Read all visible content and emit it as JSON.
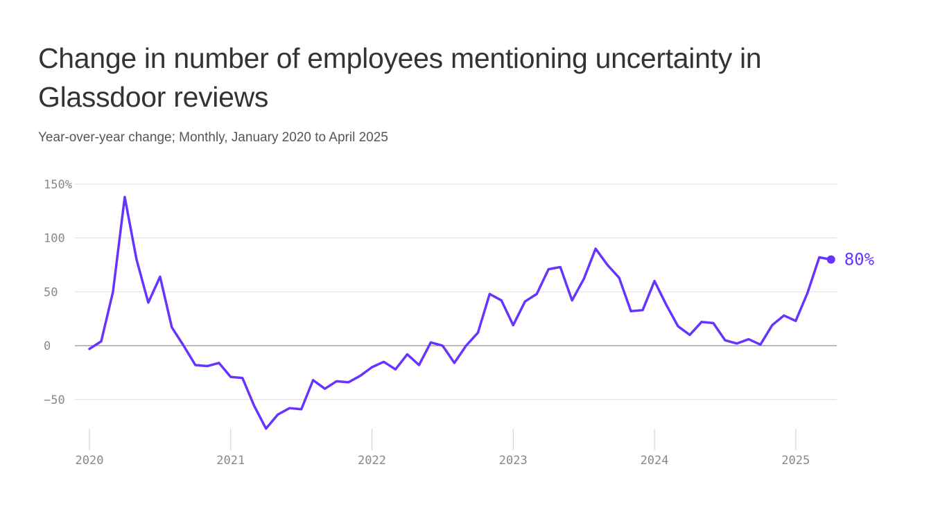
{
  "chart_data": {
    "type": "line",
    "title": "Change in number of employees mentioning uncertainty in Glassdoor reviews",
    "subtitle": "Year-over-year change; Monthly, January 2020 to April 2025",
    "xlabel": "",
    "ylabel": "",
    "ylim": [
      -80,
      150
    ],
    "yticks": [
      150,
      100,
      50,
      0,
      -50
    ],
    "ytick_labels": [
      "150%",
      "100",
      "50",
      "0",
      "−50"
    ],
    "xticks": [
      "2020",
      "2021",
      "2022",
      "2023",
      "2024",
      "2025"
    ],
    "grid": true,
    "line_color": "#6633ff",
    "end_label": "80%",
    "x": [
      "2020-01",
      "2020-02",
      "2020-03",
      "2020-04",
      "2020-05",
      "2020-06",
      "2020-07",
      "2020-08",
      "2020-09",
      "2020-10",
      "2020-11",
      "2020-12",
      "2021-01",
      "2021-02",
      "2021-03",
      "2021-04",
      "2021-05",
      "2021-06",
      "2021-07",
      "2021-08",
      "2021-09",
      "2021-10",
      "2021-11",
      "2021-12",
      "2022-01",
      "2022-02",
      "2022-03",
      "2022-04",
      "2022-05",
      "2022-06",
      "2022-07",
      "2022-08",
      "2022-09",
      "2022-10",
      "2022-11",
      "2022-12",
      "2023-01",
      "2023-02",
      "2023-03",
      "2023-04",
      "2023-05",
      "2023-06",
      "2023-07",
      "2023-08",
      "2023-09",
      "2023-10",
      "2023-11",
      "2023-12",
      "2024-01",
      "2024-02",
      "2024-03",
      "2024-04",
      "2024-05",
      "2024-06",
      "2024-07",
      "2024-08",
      "2024-09",
      "2024-10",
      "2024-11",
      "2024-12",
      "2025-01",
      "2025-02",
      "2025-03",
      "2025-04"
    ],
    "series": [
      {
        "values": [
          -3,
          4,
          50,
          138,
          80,
          40,
          64,
          17,
          0,
          -18,
          -19,
          -16,
          -29,
          -30,
          -56,
          -77,
          -64,
          -58,
          -59,
          -32,
          -40,
          -33,
          -34,
          -28,
          -20,
          -15,
          -22,
          -8,
          -18,
          3,
          0,
          -16,
          0,
          12,
          48,
          42,
          19,
          41,
          48,
          71,
          73,
          42,
          62,
          90,
          75,
          63,
          32,
          33,
          60,
          38,
          18,
          10,
          22,
          21,
          5,
          2,
          6,
          1,
          19,
          28,
          23,
          49,
          82,
          80
        ]
      }
    ]
  }
}
